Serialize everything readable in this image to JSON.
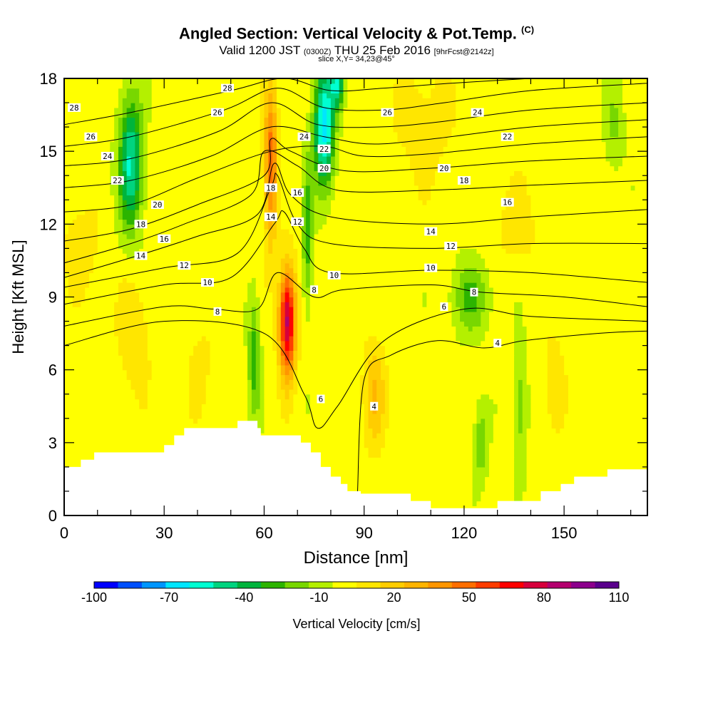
{
  "header": {
    "title_main": "Angled Section: Vertical Velocity & Pot.Temp.",
    "title_unit": "(C)",
    "valid_prefix": "Valid 1200 JST",
    "valid_utc": "(0300Z)",
    "valid_date": "THU 25 Feb 2016",
    "valid_fcst": "[9hrFcst@2142z]",
    "slice": "slice X,Y= 34,23@45°"
  },
  "chart_data": {
    "type": "heatmap",
    "xlabel": "Distance [nm]",
    "ylabel": "Height [Kft MSL]",
    "xlim": [
      0,
      175
    ],
    "ylim": [
      0,
      18
    ],
    "x_ticks": [
      0,
      30,
      60,
      90,
      120,
      150
    ],
    "y_ticks": [
      0,
      3,
      6,
      9,
      12,
      15,
      18
    ],
    "colorbar": {
      "label": "Vertical Velocity [cm/s]",
      "tick_labels": [
        "-100",
        "-70",
        "-40",
        "-10",
        "20",
        "50",
        "80",
        "110"
      ],
      "tick_values": [
        -100,
        -70,
        -40,
        -10,
        20,
        50,
        80,
        110
      ],
      "levels": [
        -100,
        -90,
        -80,
        -70,
        -60,
        -50,
        -40,
        -30,
        -20,
        -10,
        0,
        10,
        20,
        30,
        40,
        50,
        60,
        70,
        80,
        90,
        100,
        110
      ],
      "colors": [
        "#0000ff",
        "#0050ff",
        "#0096ff",
        "#00e6ff",
        "#00ffd2",
        "#00d47f",
        "#00b43c",
        "#2cb400",
        "#78d700",
        "#b4f000",
        "#ffff00",
        "#ffe600",
        "#ffcd00",
        "#ffb400",
        "#ff9600",
        "#ff6e00",
        "#ff3c00",
        "#ff0000",
        "#d7003c",
        "#b4006e",
        "#8c008c",
        "#5a008c"
      ]
    },
    "terrain_kft": [
      [
        0,
        2.0
      ],
      [
        5,
        2.0
      ],
      [
        5,
        2.3
      ],
      [
        9,
        2.3
      ],
      [
        9,
        2.6
      ],
      [
        30,
        2.6
      ],
      [
        30,
        2.9
      ],
      [
        33,
        2.9
      ],
      [
        33,
        3.3
      ],
      [
        36,
        3.3
      ],
      [
        36,
        3.6
      ],
      [
        52,
        3.6
      ],
      [
        52,
        3.9
      ],
      [
        58,
        3.9
      ],
      [
        58,
        3.6
      ],
      [
        59,
        3.6
      ],
      [
        59,
        3.3
      ],
      [
        71,
        3.3
      ],
      [
        71,
        3.0
      ],
      [
        74,
        3.0
      ],
      [
        74,
        2.6
      ],
      [
        77,
        2.6
      ],
      [
        77,
        2.0
      ],
      [
        80,
        2.0
      ],
      [
        80,
        1.6
      ],
      [
        83,
        1.6
      ],
      [
        83,
        1.3
      ],
      [
        85,
        1.3
      ],
      [
        85,
        1.0
      ],
      [
        89,
        1.0
      ],
      [
        89,
        0.9
      ],
      [
        104,
        0.9
      ],
      [
        104,
        0.6
      ],
      [
        110,
        0.6
      ],
      [
        110,
        0.3
      ],
      [
        130,
        0.3
      ],
      [
        130,
        0.6
      ],
      [
        143,
        0.6
      ],
      [
        143,
        1.0
      ],
      [
        149,
        1.0
      ],
      [
        149,
        1.3
      ],
      [
        153,
        1.3
      ],
      [
        153,
        1.6
      ],
      [
        163,
        1.6
      ],
      [
        163,
        1.9
      ],
      [
        175,
        1.9
      ]
    ],
    "updrafts": [
      {
        "x": 67,
        "y": 8.0,
        "sx": 2.5,
        "sy": 2.2,
        "amp": 90
      },
      {
        "x": 62,
        "y": 14.5,
        "sx": 2.0,
        "sy": 3.2,
        "amp": 55
      },
      {
        "x": 21,
        "y": 7.5,
        "sx": 5.0,
        "sy": 2.5,
        "amp": 15
      },
      {
        "x": 5,
        "y": 11.0,
        "sx": 5.0,
        "sy": 1.8,
        "amp": 15
      },
      {
        "x": 93,
        "y": 5.0,
        "sx": 3.5,
        "sy": 2.2,
        "amp": 25
      },
      {
        "x": 41,
        "y": 6.0,
        "sx": 4.0,
        "sy": 2.0,
        "amp": 10
      },
      {
        "x": 108,
        "y": 16.0,
        "sx": 10.0,
        "sy": 2.5,
        "amp": 12
      },
      {
        "x": 147,
        "y": 5.5,
        "sx": 3.0,
        "sy": 2.0,
        "amp": 15
      },
      {
        "x": 136,
        "y": 12.0,
        "sx": 8.0,
        "sy": 2.0,
        "amp": 10
      }
    ],
    "downdrafts": [
      {
        "x": 20,
        "y": 14.5,
        "sx": 3.5,
        "sy": 2.8,
        "amp": -55
      },
      {
        "x": 78,
        "y": 16.0,
        "sx": 3.0,
        "sy": 2.5,
        "amp": -70
      },
      {
        "x": 82,
        "y": 17.8,
        "sx": 2.0,
        "sy": 1.0,
        "amp": -50
      },
      {
        "x": 73,
        "y": 11.5,
        "sx": 1.5,
        "sy": 3.0,
        "amp": -30
      },
      {
        "x": 57,
        "y": 6.5,
        "sx": 1.8,
        "sy": 2.5,
        "amp": -30
      },
      {
        "x": 122,
        "y": 9.0,
        "sx": 6.0,
        "sy": 1.5,
        "amp": -25
      },
      {
        "x": 125,
        "y": 3.0,
        "sx": 2.0,
        "sy": 1.5,
        "amp": -25
      },
      {
        "x": 137,
        "y": 4.5,
        "sx": 2.0,
        "sy": 2.5,
        "amp": -20
      },
      {
        "x": 165,
        "y": 16.0,
        "sx": 3.0,
        "sy": 2.0,
        "amp": -15
      }
    ],
    "theta_contours": [
      {
        "value": 4,
        "points": [
          [
            88,
            0.9
          ],
          [
            90,
            5.6
          ],
          [
            98,
            6.6
          ],
          [
            112,
            7.2
          ],
          [
            126,
            6.9
          ],
          [
            138,
            7.2
          ],
          [
            160,
            7.5
          ],
          [
            175,
            7.6
          ]
        ]
      },
      {
        "value": 6,
        "points": [
          [
            0,
            7.0
          ],
          [
            30,
            8.0
          ],
          [
            60,
            7.5
          ],
          [
            72,
            5.0
          ],
          [
            76,
            3.6
          ],
          [
            82,
            4.5
          ],
          [
            96,
            7.2
          ],
          [
            120,
            8.5
          ],
          [
            140,
            8.2
          ],
          [
            175,
            8.0
          ]
        ]
      },
      {
        "value": 8,
        "points": [
          [
            0,
            7.8
          ],
          [
            30,
            8.6
          ],
          [
            45,
            8.5
          ],
          [
            58,
            8.5
          ],
          [
            64,
            10.0
          ],
          [
            75,
            9.0
          ],
          [
            84,
            9.3
          ],
          [
            110,
            9.5
          ],
          [
            125,
            9.2
          ],
          [
            150,
            9.0
          ],
          [
            175,
            8.6
          ]
        ]
      },
      {
        "value": 10,
        "points": [
          [
            0,
            8.7
          ],
          [
            30,
            9.5
          ],
          [
            50,
            9.8
          ],
          [
            63,
            12.0
          ],
          [
            66,
            12.5
          ],
          [
            72,
            11.0
          ],
          [
            80,
            10.0
          ],
          [
            110,
            10.1
          ],
          [
            140,
            10.0
          ],
          [
            175,
            9.6
          ]
        ]
      },
      {
        "value": 12,
        "points": [
          [
            0,
            9.4
          ],
          [
            30,
            10.2
          ],
          [
            52,
            10.8
          ],
          [
            62,
            13.5
          ],
          [
            64,
            14.0
          ],
          [
            70,
            12.0
          ],
          [
            80,
            11.2
          ],
          [
            110,
            11.0
          ],
          [
            140,
            11.2
          ],
          [
            175,
            11.2
          ]
        ]
      },
      {
        "value": 14,
        "points": [
          [
            0,
            9.8
          ],
          [
            22,
            10.7
          ],
          [
            40,
            11.5
          ],
          [
            58,
            12.4
          ],
          [
            63,
            14.5
          ],
          [
            68,
            13.2
          ],
          [
            80,
            12.3
          ],
          [
            110,
            12.0
          ],
          [
            140,
            12.3
          ],
          [
            175,
            12.6
          ]
        ]
      },
      {
        "value": 16,
        "points": [
          [
            0,
            10.4
          ],
          [
            20,
            11.2
          ],
          [
            36,
            12.0
          ],
          [
            56,
            13.2
          ],
          [
            60,
            15.0
          ],
          [
            70,
            14.4
          ],
          [
            82,
            13.4
          ],
          [
            110,
            13.4
          ],
          [
            140,
            13.6
          ],
          [
            175,
            13.8
          ]
        ]
      },
      {
        "value": 18,
        "points": [
          [
            0,
            11.3
          ],
          [
            20,
            11.8
          ],
          [
            40,
            12.8
          ],
          [
            60,
            14.0
          ],
          [
            62,
            15.5
          ],
          [
            68,
            15.0
          ],
          [
            84,
            14.2
          ],
          [
            110,
            14.3
          ],
          [
            140,
            14.6
          ],
          [
            175,
            14.8
          ]
        ]
      },
      {
        "value": 20,
        "points": [
          [
            0,
            12.5
          ],
          [
            20,
            12.8
          ],
          [
            40,
            13.9
          ],
          [
            62,
            15.0
          ],
          [
            78,
            15.2
          ],
          [
            90,
            14.8
          ],
          [
            110,
            14.9
          ],
          [
            140,
            15.3
          ],
          [
            175,
            15.6
          ]
        ]
      },
      {
        "value": 22,
        "points": [
          [
            0,
            13.5
          ],
          [
            20,
            13.8
          ],
          [
            44,
            14.8
          ],
          [
            62,
            16.0
          ],
          [
            78,
            15.6
          ],
          [
            92,
            15.3
          ],
          [
            110,
            15.5
          ],
          [
            140,
            16.0
          ],
          [
            175,
            16.3
          ]
        ]
      },
      {
        "value": 24,
        "points": [
          [
            0,
            14.4
          ],
          [
            20,
            14.7
          ],
          [
            46,
            15.8
          ],
          [
            62,
            17.0
          ],
          [
            76,
            16.1
          ],
          [
            94,
            16.0
          ],
          [
            112,
            16.2
          ],
          [
            140,
            16.7
          ],
          [
            175,
            17.0
          ]
        ]
      },
      {
        "value": 26,
        "points": [
          [
            0,
            15.2
          ],
          [
            20,
            15.6
          ],
          [
            48,
            16.7
          ],
          [
            64,
            17.6
          ],
          [
            78,
            16.8
          ],
          [
            96,
            16.7
          ],
          [
            114,
            17.0
          ],
          [
            140,
            17.5
          ],
          [
            175,
            17.8
          ]
        ]
      },
      {
        "value": 28,
        "points": [
          [
            0,
            16.1
          ],
          [
            20,
            16.6
          ],
          [
            50,
            17.5
          ],
          [
            66,
            18.0
          ],
          [
            80,
            17.5
          ],
          [
            96,
            17.6
          ],
          [
            116,
            17.8
          ],
          [
            140,
            18.0
          ]
        ]
      }
    ],
    "contour_labels": [
      {
        "text": "28",
        "x": 3,
        "y": 16.8
      },
      {
        "text": "26",
        "x": 8,
        "y": 15.6
      },
      {
        "text": "24",
        "x": 13,
        "y": 14.8
      },
      {
        "text": "22",
        "x": 16,
        "y": 13.8
      },
      {
        "text": "20",
        "x": 28,
        "y": 12.8
      },
      {
        "text": "18",
        "x": 23,
        "y": 12.0
      },
      {
        "text": "16",
        "x": 30,
        "y": 11.4
      },
      {
        "text": "14",
        "x": 23,
        "y": 10.7
      },
      {
        "text": "12",
        "x": 36,
        "y": 10.3
      },
      {
        "text": "10",
        "x": 43,
        "y": 9.6
      },
      {
        "text": "8",
        "x": 46,
        "y": 8.4
      },
      {
        "text": "28",
        "x": 49,
        "y": 17.6
      },
      {
        "text": "26",
        "x": 46,
        "y": 16.6
      },
      {
        "text": "18",
        "x": 62,
        "y": 13.5
      },
      {
        "text": "14",
        "x": 62,
        "y": 12.3
      },
      {
        "text": "16",
        "x": 70,
        "y": 13.3
      },
      {
        "text": "12",
        "x": 70,
        "y": 12.1
      },
      {
        "text": "24",
        "x": 72,
        "y": 15.6
      },
      {
        "text": "22",
        "x": 78,
        "y": 15.1
      },
      {
        "text": "20",
        "x": 78,
        "y": 14.3
      },
      {
        "text": "10",
        "x": 81,
        "y": 9.9
      },
      {
        "text": "8",
        "x": 75,
        "y": 9.3
      },
      {
        "text": "6",
        "x": 77,
        "y": 4.8
      },
      {
        "text": "4",
        "x": 93,
        "y": 4.5
      },
      {
        "text": "26",
        "x": 97,
        "y": 16.6
      },
      {
        "text": "24",
        "x": 124,
        "y": 16.6
      },
      {
        "text": "22",
        "x": 133,
        "y": 15.6
      },
      {
        "text": "20",
        "x": 114,
        "y": 14.3
      },
      {
        "text": "18",
        "x": 120,
        "y": 13.8
      },
      {
        "text": "16",
        "x": 133,
        "y": 12.9
      },
      {
        "text": "14",
        "x": 110,
        "y": 11.7
      },
      {
        "text": "12",
        "x": 116,
        "y": 11.1
      },
      {
        "text": "10",
        "x": 110,
        "y": 10.2
      },
      {
        "text": "8",
        "x": 123,
        "y": 9.2
      },
      {
        "text": "6",
        "x": 114,
        "y": 8.6
      },
      {
        "text": "4",
        "x": 130,
        "y": 7.1
      }
    ]
  }
}
